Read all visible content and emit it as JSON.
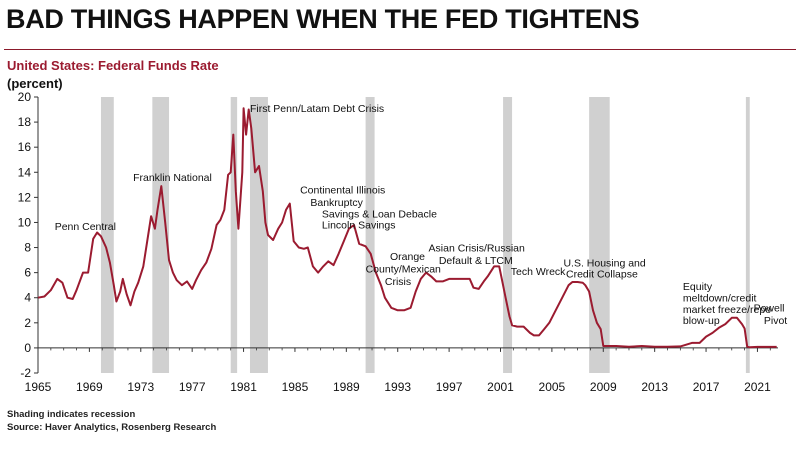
{
  "header": {
    "headline": "BAD THINGS HAPPEN WHEN THE FED TIGHTENS",
    "subtitle": "United States: Federal Funds Rate",
    "unit": "(percent)"
  },
  "footer": {
    "note": "Shading indicates recession",
    "source": "Source: Haver Analytics, Rosenberg Research"
  },
  "chart_data": {
    "type": "line",
    "ylabel": "(percent)",
    "xlim": [
      1965,
      2022.6
    ],
    "ylim": [
      -2,
      20
    ],
    "yticks": [
      -2,
      0,
      2,
      4,
      6,
      8,
      10,
      12,
      14,
      16,
      18,
      20
    ],
    "xticks": [
      1965,
      1969,
      1973,
      1977,
      1981,
      1985,
      1989,
      1993,
      1997,
      2001,
      2005,
      2009,
      2013,
      2017,
      2021
    ],
    "grid": false,
    "line_color": "#9b1b30",
    "recession_color": "#d0d0d0",
    "recessions": [
      [
        1969.9,
        1970.9
      ],
      [
        1973.9,
        1975.2
      ],
      [
        1980.0,
        1980.5
      ],
      [
        1981.5,
        1982.9
      ],
      [
        1990.5,
        1991.2
      ],
      [
        2001.2,
        2001.9
      ],
      [
        2007.9,
        2009.5
      ],
      [
        2020.1,
        2020.4
      ]
    ],
    "series": [
      {
        "x": [
          1965.0,
          1965.5,
          1966.0,
          1966.5,
          1966.9,
          1967.3,
          1967.7,
          1968.0,
          1968.5,
          1968.9,
          1969.3,
          1969.6,
          1969.9,
          1970.3,
          1970.6,
          1970.9,
          1971.1,
          1971.4,
          1971.6,
          1971.9,
          1972.2,
          1972.5,
          1972.8,
          1973.2,
          1973.5,
          1973.8,
          1974.1,
          1974.3,
          1974.6,
          1974.9,
          1975.2,
          1975.5,
          1975.8,
          1976.2,
          1976.6,
          1977.0,
          1977.3,
          1977.7,
          1978.1,
          1978.5,
          1978.9,
          1979.2,
          1979.5,
          1979.8,
          1980.0,
          1980.2,
          1980.4,
          1980.6,
          1980.9,
          1981.0,
          1981.2,
          1981.4,
          1981.6,
          1981.9,
          1982.2,
          1982.5,
          1982.7,
          1982.9,
          1983.3,
          1983.7,
          1984.0,
          1984.3,
          1984.6,
          1984.9,
          1985.3,
          1985.7,
          1986.0,
          1986.4,
          1986.8,
          1987.2,
          1987.6,
          1988.0,
          1988.4,
          1988.8,
          1989.2,
          1989.6,
          1990.0,
          1990.5,
          1990.9,
          1991.3,
          1991.7,
          1992.0,
          1992.5,
          1993.0,
          1993.5,
          1994.0,
          1994.4,
          1994.8,
          1995.2,
          1995.6,
          1996.0,
          1996.5,
          1997.0,
          1997.5,
          1998.0,
          1998.6,
          1998.9,
          1999.3,
          1999.7,
          2000.0,
          2000.5,
          2000.9,
          2001.1,
          2001.4,
          2001.7,
          2001.9,
          2002.3,
          2002.8,
          2003.3,
          2003.6,
          2004.0,
          2004.4,
          2004.8,
          2005.3,
          2005.8,
          2006.3,
          2006.6,
          2007.0,
          2007.4,
          2007.6,
          2007.9,
          2008.2,
          2008.5,
          2008.8,
          2009.0,
          2010.0,
          2011.0,
          2012.0,
          2013.0,
          2014.0,
          2015.0,
          2015.9,
          2016.5,
          2017.0,
          2017.5,
          2018.0,
          2018.5,
          2019.0,
          2019.4,
          2019.8,
          2020.0,
          2020.2,
          2020.4,
          2021.0,
          2022.5
        ],
        "values": [
          4.0,
          4.1,
          4.6,
          5.5,
          5.2,
          4.0,
          3.9,
          4.6,
          6.0,
          6.0,
          8.7,
          9.2,
          8.9,
          8.0,
          6.8,
          5.0,
          3.7,
          4.5,
          5.5,
          4.3,
          3.4,
          4.5,
          5.2,
          6.5,
          8.5,
          10.5,
          9.5,
          11.0,
          12.9,
          10.0,
          7.0,
          6.0,
          5.4,
          5.0,
          5.3,
          4.7,
          5.4,
          6.2,
          6.8,
          7.9,
          9.8,
          10.2,
          11.0,
          13.8,
          14.0,
          17.0,
          12.5,
          9.5,
          14.0,
          19.1,
          17.0,
          19.0,
          17.5,
          14.0,
          14.5,
          12.5,
          10.0,
          9.0,
          8.6,
          9.5,
          10.0,
          11.0,
          11.5,
          8.5,
          8.0,
          7.9,
          8.0,
          6.5,
          6.0,
          6.5,
          6.9,
          6.6,
          7.5,
          8.5,
          9.5,
          9.8,
          8.3,
          8.1,
          7.5,
          6.0,
          5.0,
          4.0,
          3.2,
          3.0,
          3.0,
          3.2,
          4.5,
          5.5,
          6.0,
          5.7,
          5.3,
          5.3,
          5.5,
          5.5,
          5.5,
          5.5,
          4.8,
          4.7,
          5.3,
          5.7,
          6.5,
          6.5,
          5.5,
          4.0,
          2.5,
          1.8,
          1.7,
          1.7,
          1.2,
          1.0,
          1.0,
          1.5,
          2.0,
          3.0,
          4.0,
          5.0,
          5.25,
          5.25,
          5.2,
          5.0,
          4.5,
          3.0,
          2.0,
          1.5,
          0.15,
          0.15,
          0.1,
          0.15,
          0.1,
          0.1,
          0.12,
          0.4,
          0.4,
          0.9,
          1.2,
          1.6,
          1.9,
          2.4,
          2.4,
          1.9,
          1.55,
          0.1,
          0.05,
          0.08,
          0.08
        ]
      }
    ],
    "annotations": [
      {
        "text": "Penn Central",
        "x": 1966.3,
        "y": 9.4
      },
      {
        "text": "Franklin National",
        "x": 1972.4,
        "y": 13.3
      },
      {
        "text": "First Penn/Latam Debt Crisis",
        "x": 1981.5,
        "y": 18.8
      },
      {
        "text": "Continental Illinois",
        "x": 1985.4,
        "y": 12.3
      },
      {
        "text": "Bankruptcy",
        "x": 1986.2,
        "y": 11.3
      },
      {
        "text": "Savings & Loan Debacle",
        "x": 1987.1,
        "y": 10.4
      },
      {
        "text": "Lincoln Savings",
        "x": 1987.1,
        "y": 9.5
      },
      {
        "text": "Orange",
        "x": 1992.4,
        "y": 7.0
      },
      {
        "text": "County/Mexican",
        "x": 1990.5,
        "y": 6.0
      },
      {
        "text": "Crisis",
        "x": 1992.0,
        "y": 5.0
      },
      {
        "text": "Asian Crisis/Russian",
        "x": 1995.4,
        "y": 7.7
      },
      {
        "text": "Default & LTCM",
        "x": 1996.2,
        "y": 6.7
      },
      {
        "text": "Tech Wreck",
        "x": 2001.8,
        "y": 5.8
      },
      {
        "text": "U.S. Housing and",
        "x": 2005.9,
        "y": 6.5
      },
      {
        "text": "Credit Collapse",
        "x": 2006.1,
        "y": 5.6
      },
      {
        "text": "Equity",
        "x": 2015.2,
        "y": 4.6
      },
      {
        "text": "meltdown/credit",
        "x": 2015.2,
        "y": 3.7
      },
      {
        "text": "market freeze/repo",
        "x": 2015.2,
        "y": 2.8
      },
      {
        "text": "blow-up",
        "x": 2015.2,
        "y": 1.9
      },
      {
        "text": "Powell",
        "x": 2020.7,
        "y": 2.9
      },
      {
        "text": "Pivot",
        "x": 2021.5,
        "y": 1.9
      }
    ]
  }
}
